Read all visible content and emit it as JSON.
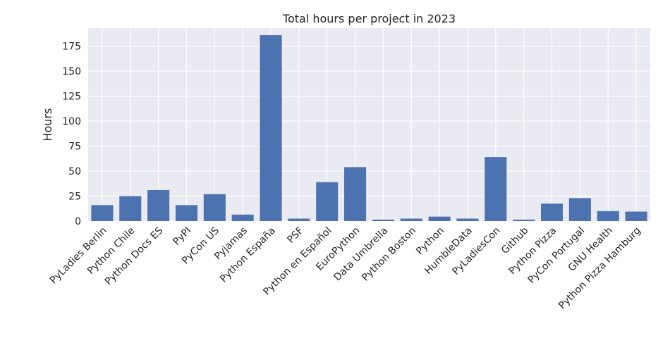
{
  "chart_data": {
    "type": "bar",
    "title": "Total hours per project in 2023",
    "xlabel": "",
    "ylabel": "Hours",
    "ylim": [
      0,
      193
    ],
    "yticks": [
      0,
      25,
      50,
      75,
      100,
      125,
      150,
      175
    ],
    "grid": true,
    "legend": "none",
    "categories": [
      "PyLadies Berlin",
      "Python Chile",
      "Python Docs ES",
      "PyPI",
      "PyCon US",
      "Pyjamas",
      "Python España",
      "PSF",
      "Python en Español",
      "EuroPython",
      "Data Umbrella",
      "Python Boston",
      "Python",
      "HumbleData",
      "PyLadiesCon",
      "Github",
      "Python Pizza",
      "PyCon Portugal",
      "GNU Health",
      "Python Pizza Hamburg"
    ],
    "values": [
      16,
      25,
      31,
      16,
      27,
      6.5,
      186,
      2.5,
      39,
      54,
      1.5,
      2.5,
      4.5,
      2.5,
      64,
      1.5,
      17.5,
      23,
      10,
      9.5
    ],
    "colors": {
      "bar": "#4c72b0",
      "background": "#eaeaf2",
      "grid": "#ffffff",
      "text": "#262626"
    }
  }
}
